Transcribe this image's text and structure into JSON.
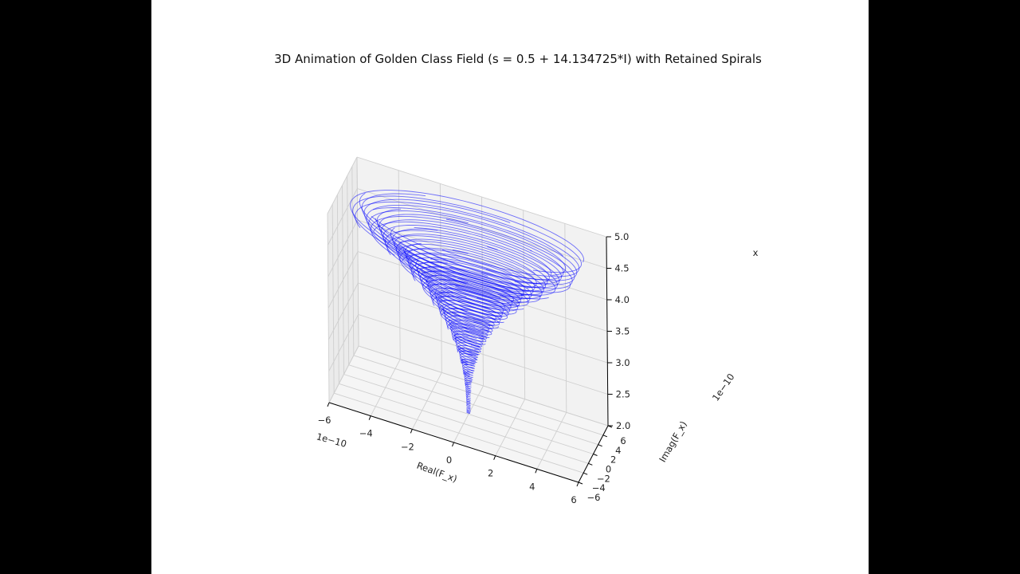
{
  "chart_data": {
    "type": "line3d",
    "title": "3D Animation of Golden Class Field (s = 0.5 + 14.134725*I) with Retained Spirals",
    "xlabel": "Real(F_x)",
    "ylabel": "Imag(F_x)",
    "zlabel": "x",
    "x_offset_label": "1e−10",
    "y_offset_label": "1e−10",
    "xlim": [
      -6,
      6
    ],
    "ylim": [
      -6,
      6
    ],
    "zlim": [
      2.0,
      5.0
    ],
    "x_ticks": [
      "−6",
      "−4",
      "−2",
      "0",
      "2",
      "4",
      "6"
    ],
    "y_ticks": [
      "−6",
      "−4",
      "−2",
      "0",
      "2",
      "4",
      "6"
    ],
    "z_ticks": [
      "2.0",
      "2.5",
      "3.0",
      "3.5",
      "4.0",
      "4.5",
      "5.0"
    ],
    "grid": true,
    "line_color": "#0000ff",
    "series": [
      {
        "x_range": [
          2.0,
          5.0
        ],
        "radius_scale": 5.5,
        "radius_exponent": 2.5,
        "spiral_turns": 16,
        "arc_sweep_deg": 300,
        "spiral_count": 120
      }
    ]
  }
}
